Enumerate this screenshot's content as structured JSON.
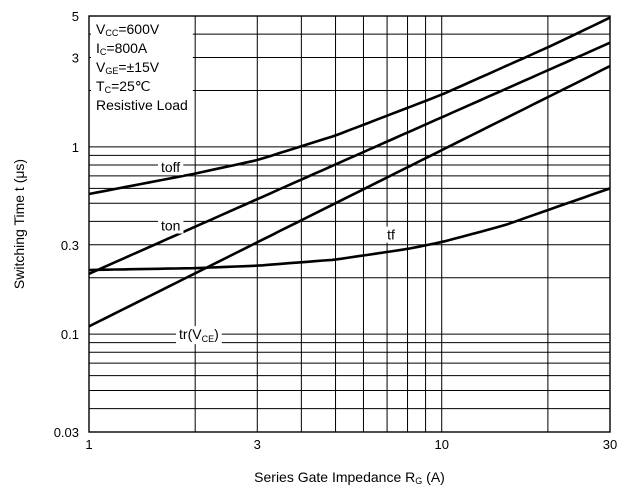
{
  "chart_data": {
    "type": "line",
    "x_scale": "log",
    "y_scale": "log",
    "xlim": [
      1,
      30
    ],
    "ylim": [
      0.03,
      5
    ],
    "grid": true,
    "xlabel_parts": [
      "Series Gate Impedance R",
      "G",
      "  (",
      "A",
      ")"
    ],
    "ylabel": "Switching Time t  (μs)",
    "x_ticks": [
      {
        "value": 1,
        "label": "1"
      },
      {
        "value": 3,
        "label": "3"
      },
      {
        "value": 10,
        "label": "10"
      },
      {
        "value": 30,
        "label": "30"
      }
    ],
    "y_ticks": [
      {
        "value": 0.03,
        "label": "0.03"
      },
      {
        "value": 0.1,
        "label": "0.1"
      },
      {
        "value": 0.3,
        "label": "0.3"
      },
      {
        "value": 1,
        "label": "1"
      },
      {
        "value": 3,
        "label": "3"
      },
      {
        "value": 5,
        "label": "5"
      }
    ],
    "x_grid": [
      1,
      2,
      3,
      4,
      5,
      6,
      7,
      8,
      9,
      10,
      20,
      30
    ],
    "y_grid": [
      0.03,
      0.04,
      0.05,
      0.06,
      0.07,
      0.08,
      0.09,
      0.1,
      0.2,
      0.3,
      0.4,
      0.5,
      0.6,
      0.7,
      0.8,
      0.9,
      1,
      2,
      3,
      4,
      5
    ],
    "conditions": [
      {
        "main": "V",
        "sub": "CC",
        "rest": "=600V"
      },
      {
        "main": "I",
        "sub": "C",
        "rest": "=800A"
      },
      {
        "main": "V",
        "sub": "GE",
        "rest": "=±15V"
      },
      {
        "main": "T",
        "sub": "C",
        "rest": "=25℃"
      },
      {
        "main": "Resistive Load",
        "sub": "",
        "rest": ""
      }
    ],
    "series": [
      {
        "name": "toff",
        "x": [
          1,
          2,
          3,
          5,
          10,
          20,
          30
        ],
        "y": [
          0.56,
          0.72,
          0.85,
          1.15,
          1.9,
          3.4,
          4.9
        ]
      },
      {
        "name": "ton",
        "x": [
          1,
          30
        ],
        "y": [
          0.21,
          3.6
        ]
      },
      {
        "name": "tf",
        "x": [
          1,
          30
        ],
        "y": [
          0.11,
          2.7
        ]
      },
      {
        "name": "tr(VCE)",
        "x": [
          1,
          2,
          3,
          5,
          8,
          10,
          15,
          20,
          30
        ],
        "y": [
          0.22,
          0.225,
          0.232,
          0.25,
          0.285,
          0.31,
          0.38,
          0.46,
          0.6
        ]
      }
    ],
    "series_labels": [
      {
        "id": "toff",
        "text": "toff",
        "x": 1.6,
        "y": 0.78,
        "box": true
      },
      {
        "id": "ton",
        "text": "ton",
        "x": 1.6,
        "y": 0.38,
        "box": true
      },
      {
        "id": "tf",
        "text": "tf",
        "x": 7.0,
        "y": 0.34,
        "box": true
      },
      {
        "id": "tr",
        "text": "tr(V",
        "sub": "CE",
        "after": ")",
        "x": 1.8,
        "y": 0.1,
        "box": true
      }
    ]
  }
}
